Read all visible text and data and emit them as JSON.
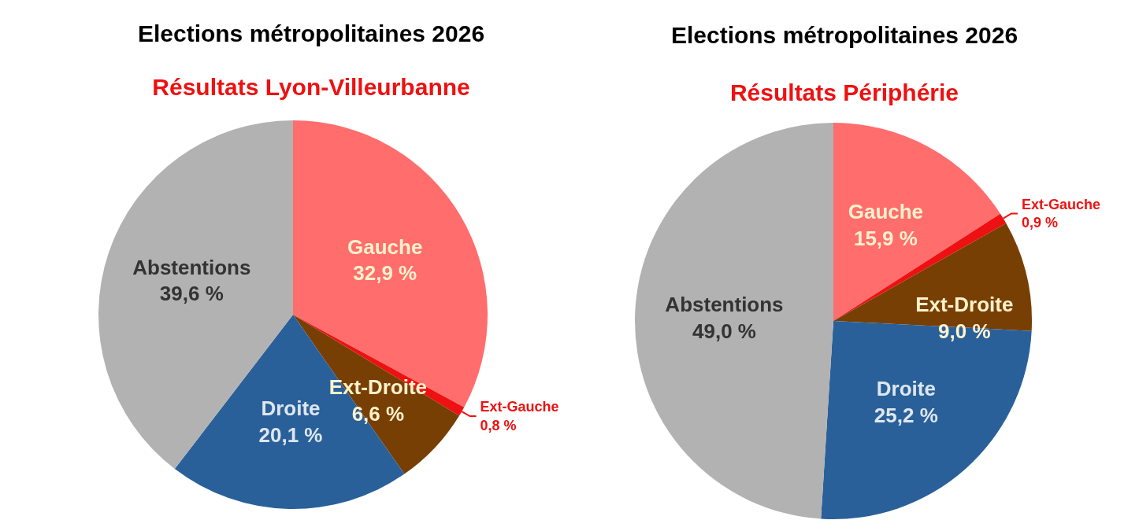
{
  "chart_data": [
    {
      "type": "pie",
      "title": "Elections métropolitaines 2026",
      "subtitle": "Résultats Lyon-Villeurbanne",
      "categories": [
        "Gauche",
        "Ext-Gauche",
        "Ext-Droite",
        "Droite",
        "Abstentions"
      ],
      "values": [
        32.9,
        0.8,
        6.6,
        20.1,
        39.6
      ],
      "colors": [
        "#ff6d6d",
        "#ee1111",
        "#783f04",
        "#2a6099",
        "#b2b2b2"
      ],
      "value_labels": [
        "32,9 %",
        "0,8 %",
        "6,6 %",
        "20,1 %",
        "39,6 %"
      ]
    },
    {
      "type": "pie",
      "title": "Elections métropolitaines 2026",
      "subtitle": "Résultats Périphérie",
      "categories": [
        "Gauche",
        "Ext-Gauche",
        "Ext-Droite",
        "Droite",
        "Abstentions"
      ],
      "values": [
        15.9,
        0.9,
        9.0,
        25.2,
        49.0
      ],
      "colors": [
        "#ff6d6d",
        "#ee1111",
        "#783f04",
        "#2a6099",
        "#b2b2b2"
      ],
      "value_labels": [
        "15,9 %",
        "0,9 %",
        "9,0 %",
        "25,2 %",
        "49,0 %"
      ]
    }
  ]
}
